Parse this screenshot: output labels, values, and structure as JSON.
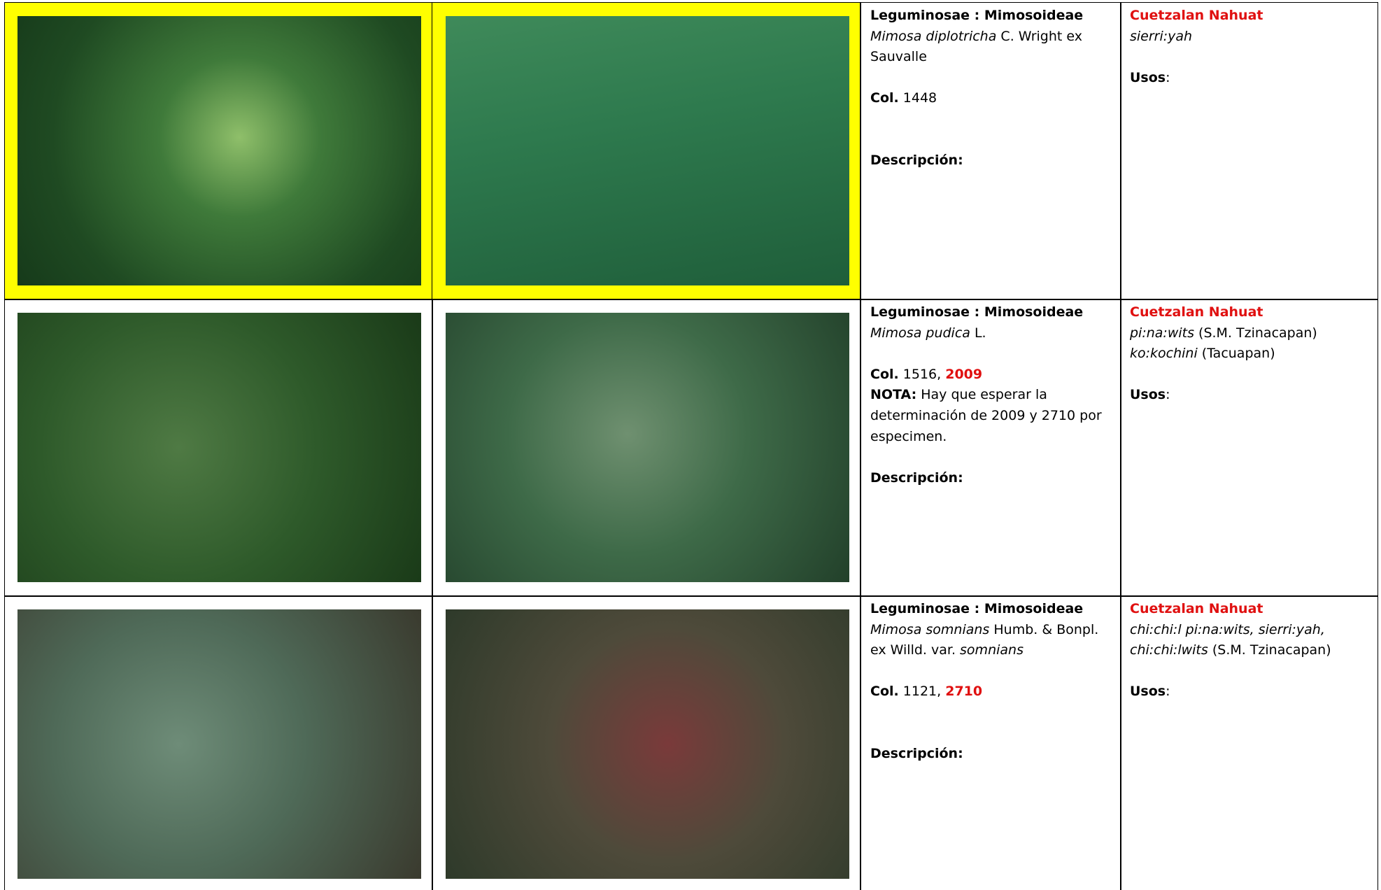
{
  "rows": [
    {
      "family": "Leguminosae : Mimosoideae",
      "species": "Mimosa diplotricha",
      "author": "C. Wright ex Sauvalle",
      "col_label": "Col.",
      "col_numbers": "1448",
      "desc_label": "Descripción:",
      "language": "Cuetzalan Nahuat",
      "names": [
        {
          "name": "sierri:yah"
        }
      ],
      "usos_label": "Usos",
      "usos_colon": ":"
    },
    {
      "family": "Leguminosae : Mimosoideae",
      "species": "Mimosa pudica",
      "author": "L.",
      "col_label": "Col.",
      "col_numbers": "1516,",
      "col_new": "2009",
      "nota_label": "NOTA:",
      "nota": "Hay que esperar la determinación de 2009 y 2710 por especimen.",
      "desc_label": "Descripción:",
      "language": "Cuetzalan Nahuat",
      "names": [
        {
          "name": "pi:na:wits",
          "place": "(S.M. Tzinacapan)"
        },
        {
          "name": "ko:kochini",
          "place": "(Tacuapan)"
        }
      ],
      "usos_label": "Usos",
      "usos_colon": ":"
    },
    {
      "family": "Leguminosae : Mimosoideae",
      "species": "Mimosa somnians",
      "author": "Humb. & Bonpl. ex Willd. var.",
      "variety": "somnians",
      "col_label": "Col.",
      "col_numbers": "1121,",
      "col_new": "2710",
      "desc_label": "Descripción:",
      "language": "Cuetzalan Nahuat",
      "names": [
        {
          "name": "chi:chi:l pi:na:wits, sierri:yah, chi:chi:lwits",
          "place": "(S.M. Tzinacapan)"
        }
      ],
      "usos_label": "Usos",
      "usos_colon": ":"
    }
  ]
}
